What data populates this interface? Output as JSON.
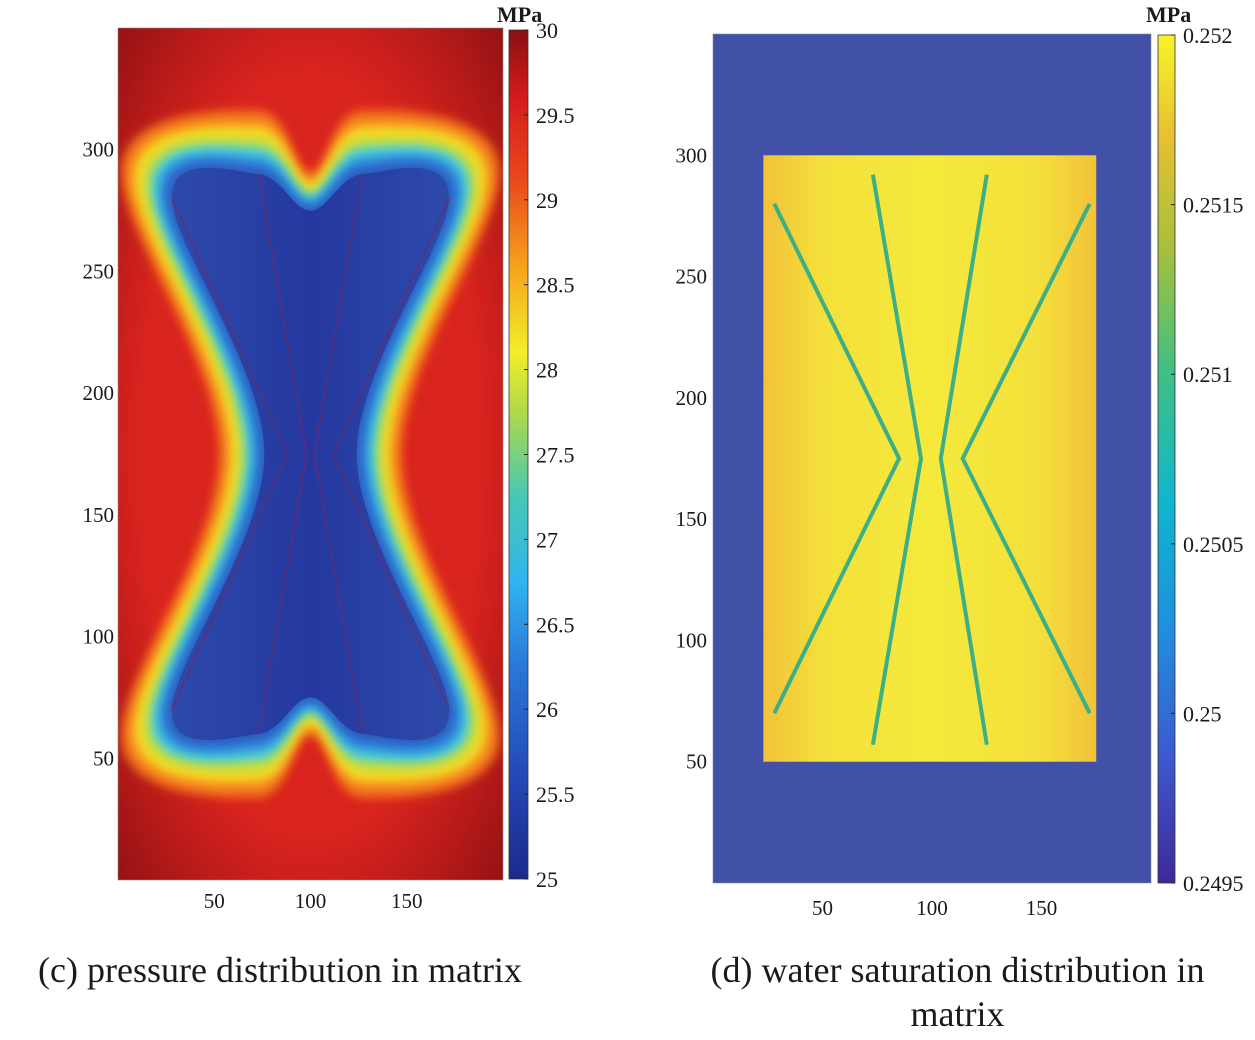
{
  "chart_data": [
    {
      "type": "heatmap",
      "caption": "(c) pressure distribution in matrix",
      "colorbar_unit": "MPa",
      "colorbar_ticks": [
        "25",
        "25.5",
        "26",
        "26.5",
        "27",
        "27.5",
        "28",
        "28.5",
        "29",
        "29.5",
        "30"
      ],
      "colorbar_range": [
        25,
        30
      ],
      "colormap": "jet",
      "xlim": [
        0,
        200
      ],
      "ylim": [
        0,
        350
      ],
      "x_ticks": [
        "50",
        "100",
        "150"
      ],
      "y_ticks": [
        "50",
        "100",
        "150",
        "200",
        "250",
        "300"
      ],
      "background_value": 30,
      "min_value": 25,
      "fractures": [
        [
          [
            28,
            280
          ],
          [
            88,
            175
          ],
          [
            28,
            70
          ]
        ],
        [
          [
            73,
            290
          ],
          [
            98,
            175
          ],
          [
            73,
            60
          ]
        ],
        [
          [
            127,
            290
          ],
          [
            102,
            175
          ],
          [
            127,
            60
          ]
        ],
        [
          [
            172,
            280
          ],
          [
            112,
            175
          ],
          [
            172,
            70
          ]
        ]
      ]
    },
    {
      "type": "heatmap",
      "caption": "(d) water saturation distribution in matrix",
      "colorbar_unit": "MPa",
      "colorbar_ticks": [
        "0.2495",
        "0.25",
        "0.2505",
        "0.251",
        "0.2515",
        "0.252"
      ],
      "colorbar_range": [
        0.2495,
        0.252
      ],
      "colormap": "parula",
      "xlim": [
        0,
        200
      ],
      "ylim": [
        0,
        350
      ],
      "x_ticks": [
        "50",
        "100",
        "150"
      ],
      "y_ticks": [
        "50",
        "100",
        "150",
        "200",
        "250",
        "300"
      ],
      "background_value": 0.2497,
      "inner_region": {
        "x": [
          23,
          175
        ],
        "y": [
          50,
          300
        ],
        "value": 0.25185
      },
      "fracture_value": 0.2509,
      "fractures": [
        [
          [
            28,
            280
          ],
          [
            85,
            175
          ],
          [
            28,
            70
          ]
        ],
        [
          [
            73,
            292
          ],
          [
            95,
            175
          ],
          [
            73,
            57
          ]
        ],
        [
          [
            125,
            292
          ],
          [
            104,
            175
          ],
          [
            125,
            57
          ]
        ],
        [
          [
            172,
            280
          ],
          [
            114,
            175
          ],
          [
            172,
            70
          ]
        ]
      ]
    }
  ],
  "colors": {
    "pressure_background": "#a8151a",
    "pressure_low": "#283a9c",
    "saturation_background": "#4050a8",
    "saturation_inner": "#f4e33b",
    "fracture_line": "#3daf86"
  }
}
